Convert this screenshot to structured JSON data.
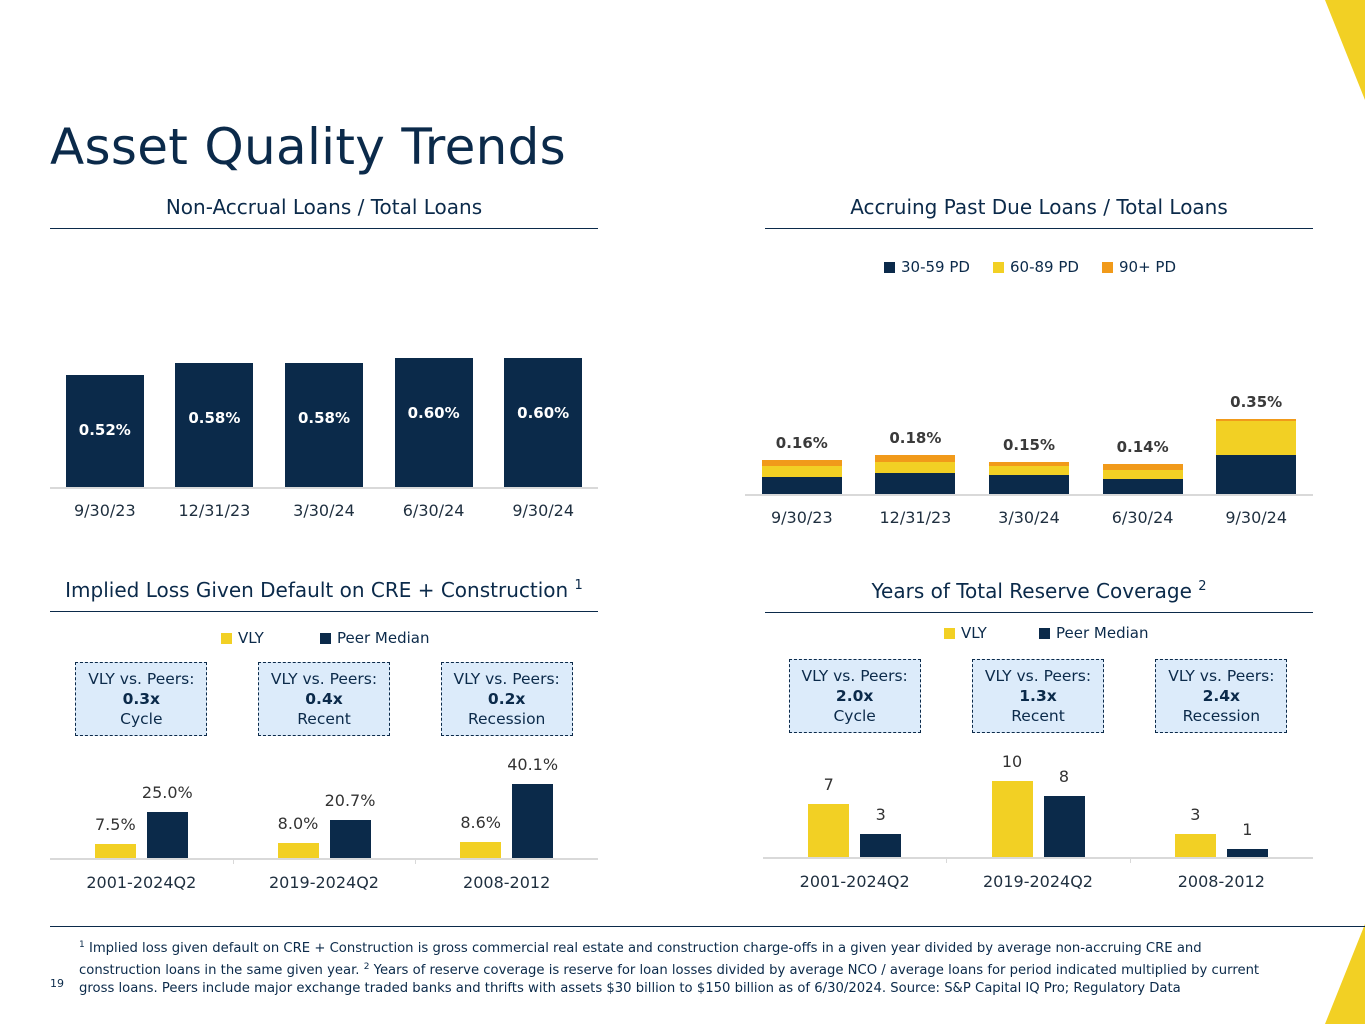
{
  "page": {
    "title": "Asset Quality Trends",
    "page_number": "19",
    "footnote": {
      "mark1": "1",
      "text1": "Implied loss given default on CRE + Construction is gross commercial real estate and construction charge-offs in a given year divided by average non-accruing CRE and construction loans in the same given year.",
      "mark2": "2",
      "text2": "Years of reserve coverage is reserve for loan losses divided by average NCO / average loans for period indicated multiplied by current gross loans.  Peers include major exchange traded banks and thrifts with assets $30 billion to $150 billion as of 6/30/2024.  Source: S&P Capital IQ Pro; Regulatory Data"
    }
  },
  "colors": {
    "navy": "#0b2a4a",
    "yellow": "#f2d024",
    "orange": "#f19a1a",
    "callout_bg": "#dcebfa"
  },
  "chart_data": [
    {
      "type": "bar",
      "title": "Non-Accrual Loans / Total Loans",
      "categories": [
        "9/30/23",
        "12/31/23",
        "3/30/24",
        "6/30/24",
        "9/30/24"
      ],
      "values": [
        0.52,
        0.58,
        0.58,
        0.6,
        0.6
      ],
      "labels": [
        "0.52%",
        "0.58%",
        "0.58%",
        "0.60%",
        "0.60%"
      ],
      "ylim": [
        0,
        0.62
      ]
    },
    {
      "type": "bar",
      "stacked": true,
      "title": "Accruing Past Due Loans / Total Loans",
      "categories": [
        "9/30/23",
        "12/31/23",
        "3/30/24",
        "6/30/24",
        "9/30/24"
      ],
      "series": [
        {
          "name": "30-59 PD",
          "color": "navy",
          "values": [
            0.08,
            0.1,
            0.09,
            0.07,
            0.18
          ]
        },
        {
          "name": "60-89 PD",
          "color": "yellow",
          "values": [
            0.05,
            0.05,
            0.04,
            0.04,
            0.16
          ]
        },
        {
          "name": "90+ PD",
          "color": "orange",
          "values": [
            0.03,
            0.03,
            0.02,
            0.03,
            0.01
          ]
        }
      ],
      "totals": [
        "0.16%",
        "0.18%",
        "0.15%",
        "0.14%",
        "0.35%"
      ],
      "ylim": [
        0,
        0.4
      ]
    },
    {
      "type": "bar",
      "title": "Implied Loss Given Default on CRE + Construction",
      "title_sup": "1",
      "categories": [
        "2001-2024Q2",
        "2019-2024Q2",
        "2008-2012"
      ],
      "series": [
        {
          "name": "VLY",
          "color": "yellow",
          "values": [
            7.5,
            8.0,
            8.6
          ],
          "labels": [
            "7.5%",
            "8.0%",
            "8.6%"
          ]
        },
        {
          "name": "Peer Median",
          "color": "navy",
          "values": [
            25.0,
            20.7,
            40.1
          ],
          "labels": [
            "25.0%",
            "20.7%",
            "40.1%"
          ]
        }
      ],
      "ylim": [
        0,
        41
      ],
      "callouts": [
        {
          "heading": "VLY vs. Peers:",
          "multiple": "0.3x",
          "period": "Cycle"
        },
        {
          "heading": "VLY vs. Peers:",
          "multiple": "0.4x",
          "period": "Recent"
        },
        {
          "heading": "VLY vs. Peers:",
          "multiple": "0.2x",
          "period": "Recession"
        }
      ]
    },
    {
      "type": "bar",
      "title": "Years of Total Reserve Coverage",
      "title_sup": "2",
      "categories": [
        "2001-2024Q2",
        "2019-2024Q2",
        "2008-2012"
      ],
      "series": [
        {
          "name": "VLY",
          "color": "yellow",
          "values": [
            7,
            10,
            3
          ],
          "labels": [
            "7",
            "10",
            "3"
          ]
        },
        {
          "name": "Peer Median",
          "color": "navy",
          "values": [
            3,
            8,
            1
          ],
          "labels": [
            "3",
            "8",
            "1"
          ]
        }
      ],
      "ylim": [
        0,
        10
      ],
      "callouts": [
        {
          "heading": "VLY vs. Peers:",
          "multiple": "2.0x",
          "period": "Cycle"
        },
        {
          "heading": "VLY vs. Peers:",
          "multiple": "1.3x",
          "period": "Recent"
        },
        {
          "heading": "VLY vs. Peers:",
          "multiple": "2.4x",
          "period": "Recession"
        }
      ]
    }
  ]
}
